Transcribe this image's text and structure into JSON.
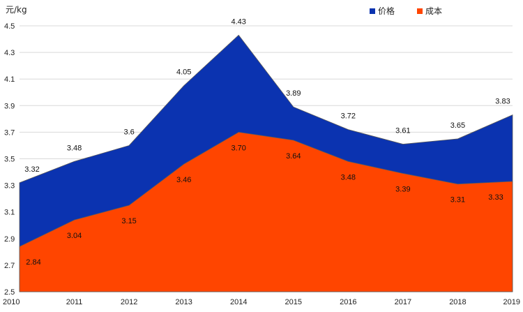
{
  "chart_data": {
    "type": "area",
    "unit_label": "元/kg",
    "x": [
      "2010",
      "2011",
      "2012",
      "2013",
      "2014",
      "2015",
      "2016",
      "2017",
      "2018",
      "2019"
    ],
    "series": [
      {
        "name": "价格",
        "color": "#0B33B0",
        "values": [
          3.32,
          3.48,
          3.6,
          4.05,
          4.43,
          3.89,
          3.72,
          3.61,
          3.65,
          3.83
        ],
        "labels": [
          "3.32",
          "3.48",
          "3.6",
          "4.05",
          "4.43",
          "3.89",
          "3.72",
          "3.61",
          "3.65",
          "3.83"
        ]
      },
      {
        "name": "成本",
        "color": "#FF4500",
        "values": [
          2.84,
          3.04,
          3.15,
          3.46,
          3.7,
          3.64,
          3.48,
          3.39,
          3.31,
          3.33
        ],
        "labels": [
          "2.84",
          "3.04",
          "3.15",
          "3.46",
          "3.70",
          "3.64",
          "3.48",
          "3.39",
          "3.31",
          "3.33"
        ]
      }
    ],
    "ylim": [
      2.5,
      4.5
    ],
    "yticks": [
      "2.5",
      "2.7",
      "2.9",
      "3.1",
      "3.3",
      "3.5",
      "3.7",
      "3.9",
      "4.1",
      "4.3",
      "4.5"
    ],
    "grid": true,
    "legend_position": "top-right"
  }
}
